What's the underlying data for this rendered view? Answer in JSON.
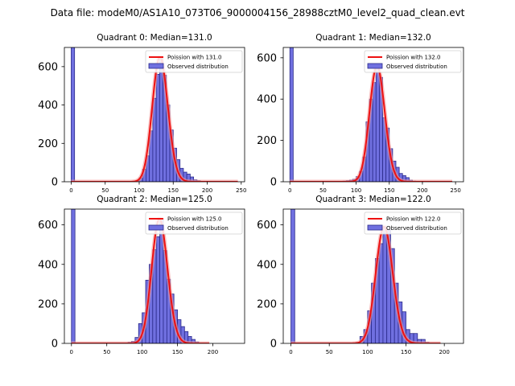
{
  "title": "Data file: modeM0/AS1A10_073T06_9000004156_28988cztM0_level2_quad_clean.evt",
  "colors": {
    "bar_fill": "#7070e0",
    "bar_edge": "#2a2a8a",
    "curve": "#ee1111",
    "curve_band": "#f59a9a"
  },
  "chart_data": [
    {
      "type": "bar",
      "title": "Quadrant 0: Median=131.0",
      "median": 131.0,
      "legend": {
        "placement": "top-right",
        "curve_label": "Poission with 131.0",
        "bars_label": "Observed distribution"
      },
      "xlim": [
        -10,
        255
      ],
      "ylim": [
        0,
        700
      ],
      "xticks": [
        0,
        50,
        100,
        150,
        200,
        250
      ],
      "yticks": [
        0,
        200,
        400,
        600
      ],
      "bin_width": 5,
      "bins": [
        {
          "x": 0,
          "y": 700
        },
        {
          "x": 95,
          "y": 3
        },
        {
          "x": 100,
          "y": 20
        },
        {
          "x": 105,
          "y": 65
        },
        {
          "x": 110,
          "y": 135
        },
        {
          "x": 115,
          "y": 265
        },
        {
          "x": 120,
          "y": 435
        },
        {
          "x": 125,
          "y": 560
        },
        {
          "x": 130,
          "y": 650
        },
        {
          "x": 135,
          "y": 555
        },
        {
          "x": 140,
          "y": 400
        },
        {
          "x": 145,
          "y": 270
        },
        {
          "x": 150,
          "y": 175
        },
        {
          "x": 155,
          "y": 115
        },
        {
          "x": 160,
          "y": 70
        },
        {
          "x": 165,
          "y": 50
        },
        {
          "x": 170,
          "y": 40
        },
        {
          "x": 175,
          "y": 25
        },
        {
          "x": 180,
          "y": 10
        },
        {
          "x": 185,
          "y": 5
        }
      ]
    },
    {
      "type": "bar",
      "title": "Quadrant 1: Median=132.0",
      "median": 132.0,
      "legend": {
        "placement": "top-right",
        "curve_label": "Poission with 132.0",
        "bars_label": "Observed distribution"
      },
      "xlim": [
        -10,
        262
      ],
      "ylim": [
        0,
        650
      ],
      "xticks": [
        0,
        50,
        100,
        150,
        200,
        250
      ],
      "yticks": [
        0,
        200,
        400,
        600
      ],
      "bin_width": 5,
      "bins": [
        {
          "x": 0,
          "y": 650
        },
        {
          "x": 80,
          "y": 3
        },
        {
          "x": 85,
          "y": 5
        },
        {
          "x": 90,
          "y": 8
        },
        {
          "x": 95,
          "y": 12
        },
        {
          "x": 100,
          "y": 25
        },
        {
          "x": 105,
          "y": 50
        },
        {
          "x": 110,
          "y": 120
        },
        {
          "x": 115,
          "y": 290
        },
        {
          "x": 120,
          "y": 400
        },
        {
          "x": 125,
          "y": 480
        },
        {
          "x": 130,
          "y": 560
        },
        {
          "x": 135,
          "y": 505
        },
        {
          "x": 140,
          "y": 310
        },
        {
          "x": 145,
          "y": 260
        },
        {
          "x": 150,
          "y": 160
        },
        {
          "x": 155,
          "y": 100
        },
        {
          "x": 160,
          "y": 70
        },
        {
          "x": 165,
          "y": 40
        },
        {
          "x": 170,
          "y": 30
        },
        {
          "x": 175,
          "y": 20
        },
        {
          "x": 180,
          "y": 8
        },
        {
          "x": 185,
          "y": 3
        }
      ]
    },
    {
      "type": "bar",
      "title": "Quadrant 2: Median=125.0",
      "median": 125.0,
      "legend": {
        "placement": "top-right",
        "curve_label": "Poission with 125.0",
        "bars_label": "Observed distribution"
      },
      "xlim": [
        -10,
        245
      ],
      "ylim": [
        0,
        680
      ],
      "xticks": [
        0,
        50,
        100,
        150,
        200
      ],
      "yticks": [
        0,
        200,
        400,
        600
      ],
      "bin_width": 5,
      "bins": [
        {
          "x": 0,
          "y": 680
        },
        {
          "x": 80,
          "y": 5
        },
        {
          "x": 85,
          "y": 10
        },
        {
          "x": 90,
          "y": 30
        },
        {
          "x": 95,
          "y": 100
        },
        {
          "x": 100,
          "y": 155
        },
        {
          "x": 105,
          "y": 320
        },
        {
          "x": 110,
          "y": 400
        },
        {
          "x": 115,
          "y": 475
        },
        {
          "x": 120,
          "y": 540
        },
        {
          "x": 125,
          "y": 630
        },
        {
          "x": 130,
          "y": 470
        },
        {
          "x": 135,
          "y": 325
        },
        {
          "x": 140,
          "y": 250
        },
        {
          "x": 145,
          "y": 170
        },
        {
          "x": 150,
          "y": 120
        },
        {
          "x": 155,
          "y": 85
        },
        {
          "x": 160,
          "y": 60
        },
        {
          "x": 165,
          "y": 35
        },
        {
          "x": 170,
          "y": 20
        },
        {
          "x": 175,
          "y": 8
        }
      ]
    },
    {
      "type": "bar",
      "title": "Quadrant 3: Median=122.0",
      "median": 122.0,
      "legend": {
        "placement": "top-right",
        "curve_label": "Poission with 122.0",
        "bars_label": "Observed distribution"
      },
      "xlim": [
        -10,
        225
      ],
      "ylim": [
        0,
        680
      ],
      "xticks": [
        0,
        50,
        100,
        150,
        200
      ],
      "yticks": [
        0,
        200,
        400,
        600
      ],
      "bin_width": 5,
      "bins": [
        {
          "x": 0,
          "y": 680
        },
        {
          "x": 85,
          "y": 5
        },
        {
          "x": 90,
          "y": 35
        },
        {
          "x": 95,
          "y": 70
        },
        {
          "x": 100,
          "y": 165
        },
        {
          "x": 105,
          "y": 305
        },
        {
          "x": 110,
          "y": 430
        },
        {
          "x": 115,
          "y": 505
        },
        {
          "x": 120,
          "y": 590
        },
        {
          "x": 125,
          "y": 575
        },
        {
          "x": 130,
          "y": 480
        },
        {
          "x": 135,
          "y": 305
        },
        {
          "x": 140,
          "y": 210
        },
        {
          "x": 145,
          "y": 160
        },
        {
          "x": 150,
          "y": 70
        },
        {
          "x": 155,
          "y": 50
        },
        {
          "x": 160,
          "y": 50
        },
        {
          "x": 165,
          "y": 20
        },
        {
          "x": 170,
          "y": 20
        },
        {
          "x": 175,
          "y": 5
        }
      ]
    }
  ]
}
